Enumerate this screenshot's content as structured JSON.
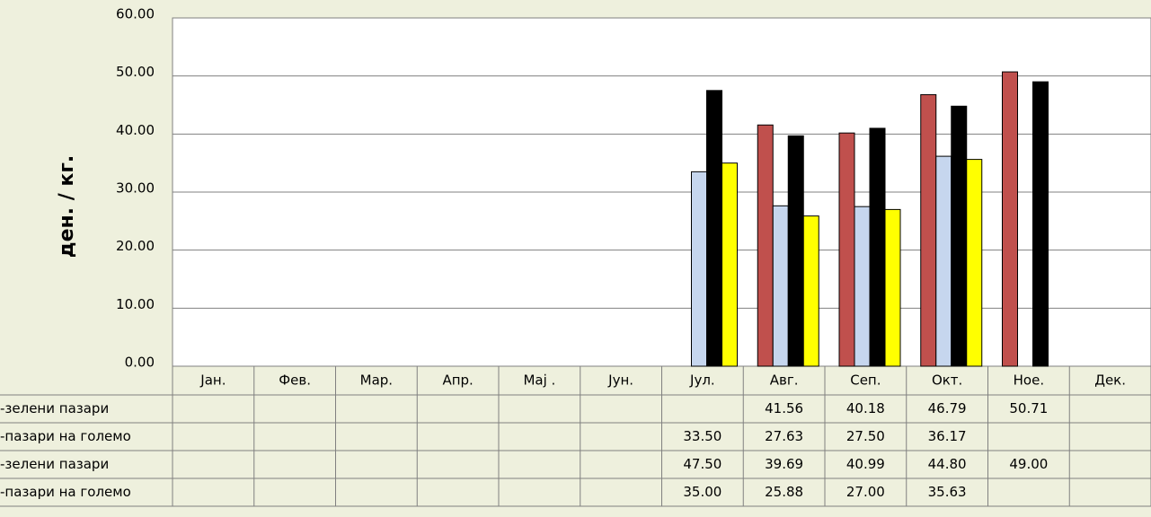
{
  "chart_data": {
    "type": "bar",
    "y_label": "ден. / кг.",
    "categories": [
      "Јан.",
      "Фев.",
      "Мар.",
      "Апр.",
      "Мај .",
      "Јун.",
      "Јул.",
      "Авг.",
      "Сеп.",
      "Окт.",
      "Ное.",
      "Дек."
    ],
    "series": [
      {
        "name": "-зелени пазари",
        "color": "#c0504d",
        "values": [
          null,
          null,
          null,
          null,
          null,
          null,
          null,
          41.56,
          40.18,
          46.79,
          50.71,
          null
        ],
        "value_labels": [
          null,
          null,
          null,
          null,
          null,
          null,
          null,
          "41.56",
          "40.18",
          "46.79",
          "50.71",
          null
        ]
      },
      {
        "name": "-пазари на големо",
        "color": "#c6d6ee",
        "values": [
          null,
          null,
          null,
          null,
          null,
          null,
          33.5,
          27.63,
          27.5,
          36.17,
          null,
          null
        ],
        "value_labels": [
          null,
          null,
          null,
          null,
          null,
          null,
          "33.50",
          "27.63",
          "27.50",
          "36.17",
          null,
          null
        ]
      },
      {
        "name": "-зелени пазари",
        "color": "#000000",
        "values": [
          null,
          null,
          null,
          null,
          null,
          null,
          47.5,
          39.69,
          40.99,
          44.8,
          49,
          null
        ],
        "value_labels": [
          null,
          null,
          null,
          null,
          null,
          null,
          "47.50",
          "39.69",
          "40.99",
          "44.80",
          "49.00",
          null
        ]
      },
      {
        "name": "-пазари на големо",
        "color": "#ffff00",
        "values": [
          null,
          null,
          null,
          null,
          null,
          null,
          35,
          25.88,
          27,
          35.63,
          null,
          null
        ],
        "value_labels": [
          null,
          null,
          null,
          null,
          null,
          null,
          "35.00",
          "25.88",
          "27.00",
          "35.63",
          null,
          null
        ]
      }
    ],
    "ylim": [
      0,
      60
    ],
    "yticks": [
      {
        "value": 0,
        "label": "0.00"
      },
      {
        "value": 10,
        "label": "10.00"
      },
      {
        "value": 20,
        "label": "20.00"
      },
      {
        "value": 30,
        "label": "30.00"
      },
      {
        "value": 40,
        "label": "40.00"
      },
      {
        "value": 50,
        "label": "50.00"
      },
      {
        "value": 60,
        "label": "60.00"
      }
    ],
    "grid": true
  }
}
